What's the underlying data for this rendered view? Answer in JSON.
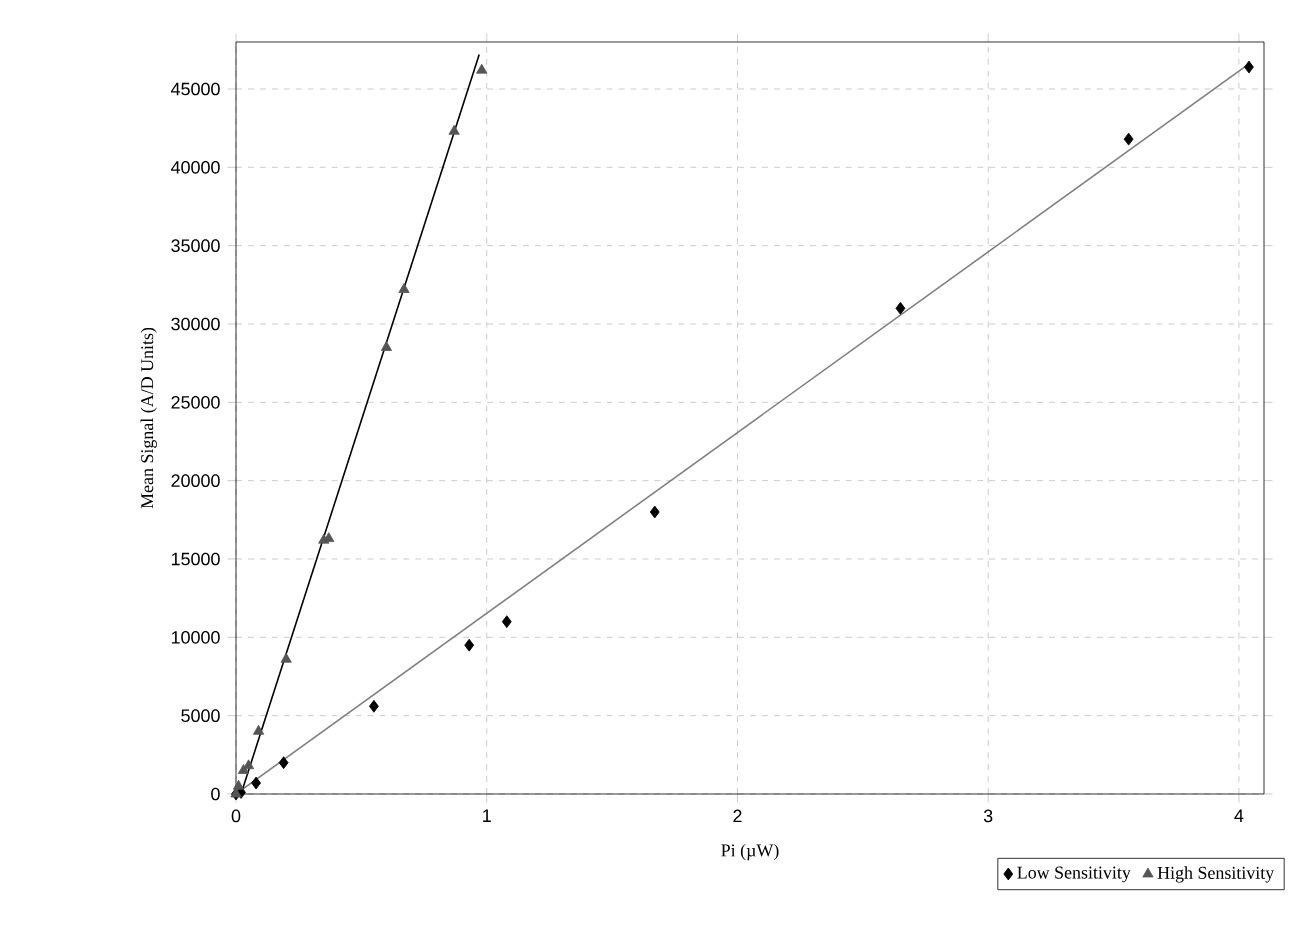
{
  "chart_data": {
    "type": "scatter",
    "xlabel": "Pi (µW)",
    "ylabel": "Mean Signal (A/D Units)",
    "xlim": [
      0,
      4.1
    ],
    "ylim": [
      0,
      48000
    ],
    "xticks": [
      0,
      1,
      2,
      3,
      4
    ],
    "yticks": [
      0,
      5000,
      10000,
      15000,
      20000,
      25000,
      30000,
      35000,
      40000,
      45000
    ],
    "grid": true,
    "legend": "bottom right",
    "series": [
      {
        "name": "Low Sensitivity",
        "color": "#000000",
        "marker": "diamond",
        "x": [
          0,
          0.02,
          0.08,
          0.19,
          0.55,
          0.93,
          1.08,
          1.67,
          2.65,
          3.56,
          4.04
        ],
        "values": [
          0,
          100,
          700,
          2000,
          5600,
          9500,
          11000,
          18000,
          31000,
          41800,
          46400
        ]
      },
      {
        "name": "High Sensitivity",
        "color": "#555555",
        "marker": "triangle",
        "x": [
          0,
          0.01,
          0.03,
          0.05,
          0.09,
          0.2,
          0.35,
          0.37,
          0.6,
          0.67,
          0.87,
          0.98
        ],
        "values": [
          0,
          500,
          1500,
          1800,
          4000,
          8600,
          16200,
          16300,
          28500,
          32200,
          42300,
          46200
        ]
      },
      {
        "type": "line",
        "color": "#808080",
        "marker": "none",
        "x": [
          0,
          4.04
        ],
        "values": [
          0,
          46600
        ]
      },
      {
        "type": "line",
        "color": "#000000",
        "marker": "none",
        "x": [
          0.02,
          0.97
        ],
        "values": [
          0,
          47200
        ]
      }
    ]
  }
}
